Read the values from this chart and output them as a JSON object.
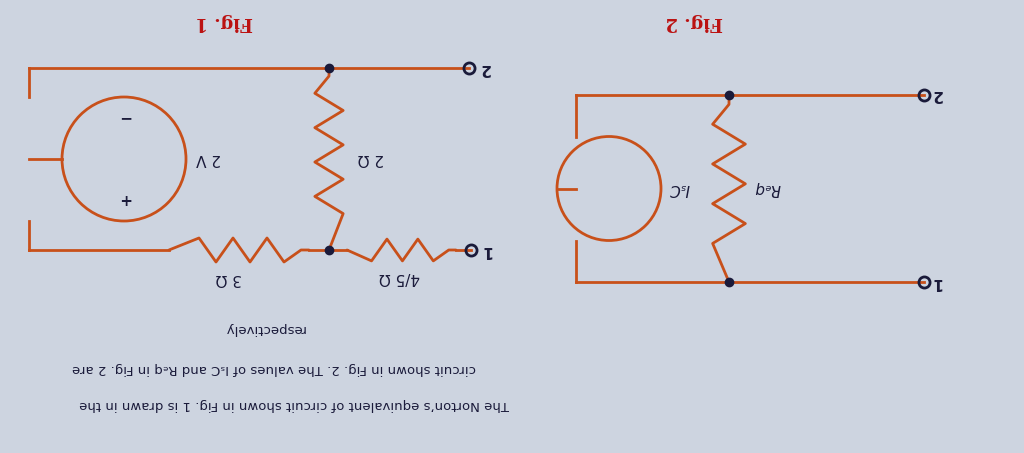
{
  "bg_color": "#cdd4e0",
  "circuit_color": "#c8501a",
  "text_color": "#1a1a3a",
  "fig1_title": "Fig. 1",
  "fig2_title": "Fig. 2",
  "bottom_text1": "The Norton’s equivalent of circuit shown in Fig. 1 is drawn in the",
  "bottom_text2": "circuit shown in Fig. 2. The values of IₛC and Rₑq in Fig. 2 are",
  "bottom_text3": "respectively",
  "fig1": {
    "node1_label": "1",
    "node2_label": "2",
    "r3_label": "3 Ω",
    "r45_label": "4/5 Ω",
    "r2_label": "2 Ω",
    "vs_label": "2 V",
    "vs_plus": "+",
    "vs_minus": "−"
  },
  "fig2": {
    "node1_label": "1",
    "node2_label": "2",
    "req_label": "Rₑq",
    "isc_label": "IₛC"
  }
}
